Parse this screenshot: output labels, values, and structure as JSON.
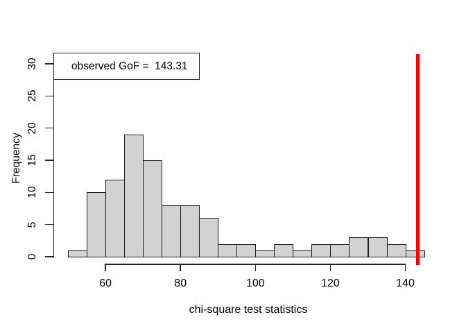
{
  "chart_data": {
    "type": "bar",
    "subtype": "histogram",
    "title": "",
    "xlabel": "chi-square test statistics",
    "ylabel": "Frequency",
    "bin_edges": [
      50,
      55,
      60,
      65,
      70,
      75,
      80,
      85,
      90,
      95,
      100,
      105,
      110,
      115,
      120,
      125,
      130,
      135,
      140,
      145
    ],
    "counts": [
      1,
      10,
      12,
      19,
      15,
      8,
      8,
      6,
      2,
      2,
      1,
      2,
      1,
      2,
      2,
      3,
      3,
      2,
      1
    ],
    "x_ticks": [
      60,
      80,
      100,
      120,
      140
    ],
    "y_ticks": [
      0,
      5,
      10,
      15,
      20,
      25,
      30
    ],
    "xlim": [
      50,
      145
    ],
    "ylim": [
      0,
      30
    ],
    "grid": false,
    "observed_gof_value": 143.31,
    "legend_position": "topleft"
  },
  "legend": {
    "text": "observed GoF =  143.31"
  },
  "colors": {
    "bar_fill": "#d2d2d2",
    "bar_border": "#1a1a1a",
    "axis": "#262626",
    "text": "#000000",
    "observed_line": "#fe0000",
    "legend_border": "#1f1f1f",
    "background": "#ffffff"
  }
}
